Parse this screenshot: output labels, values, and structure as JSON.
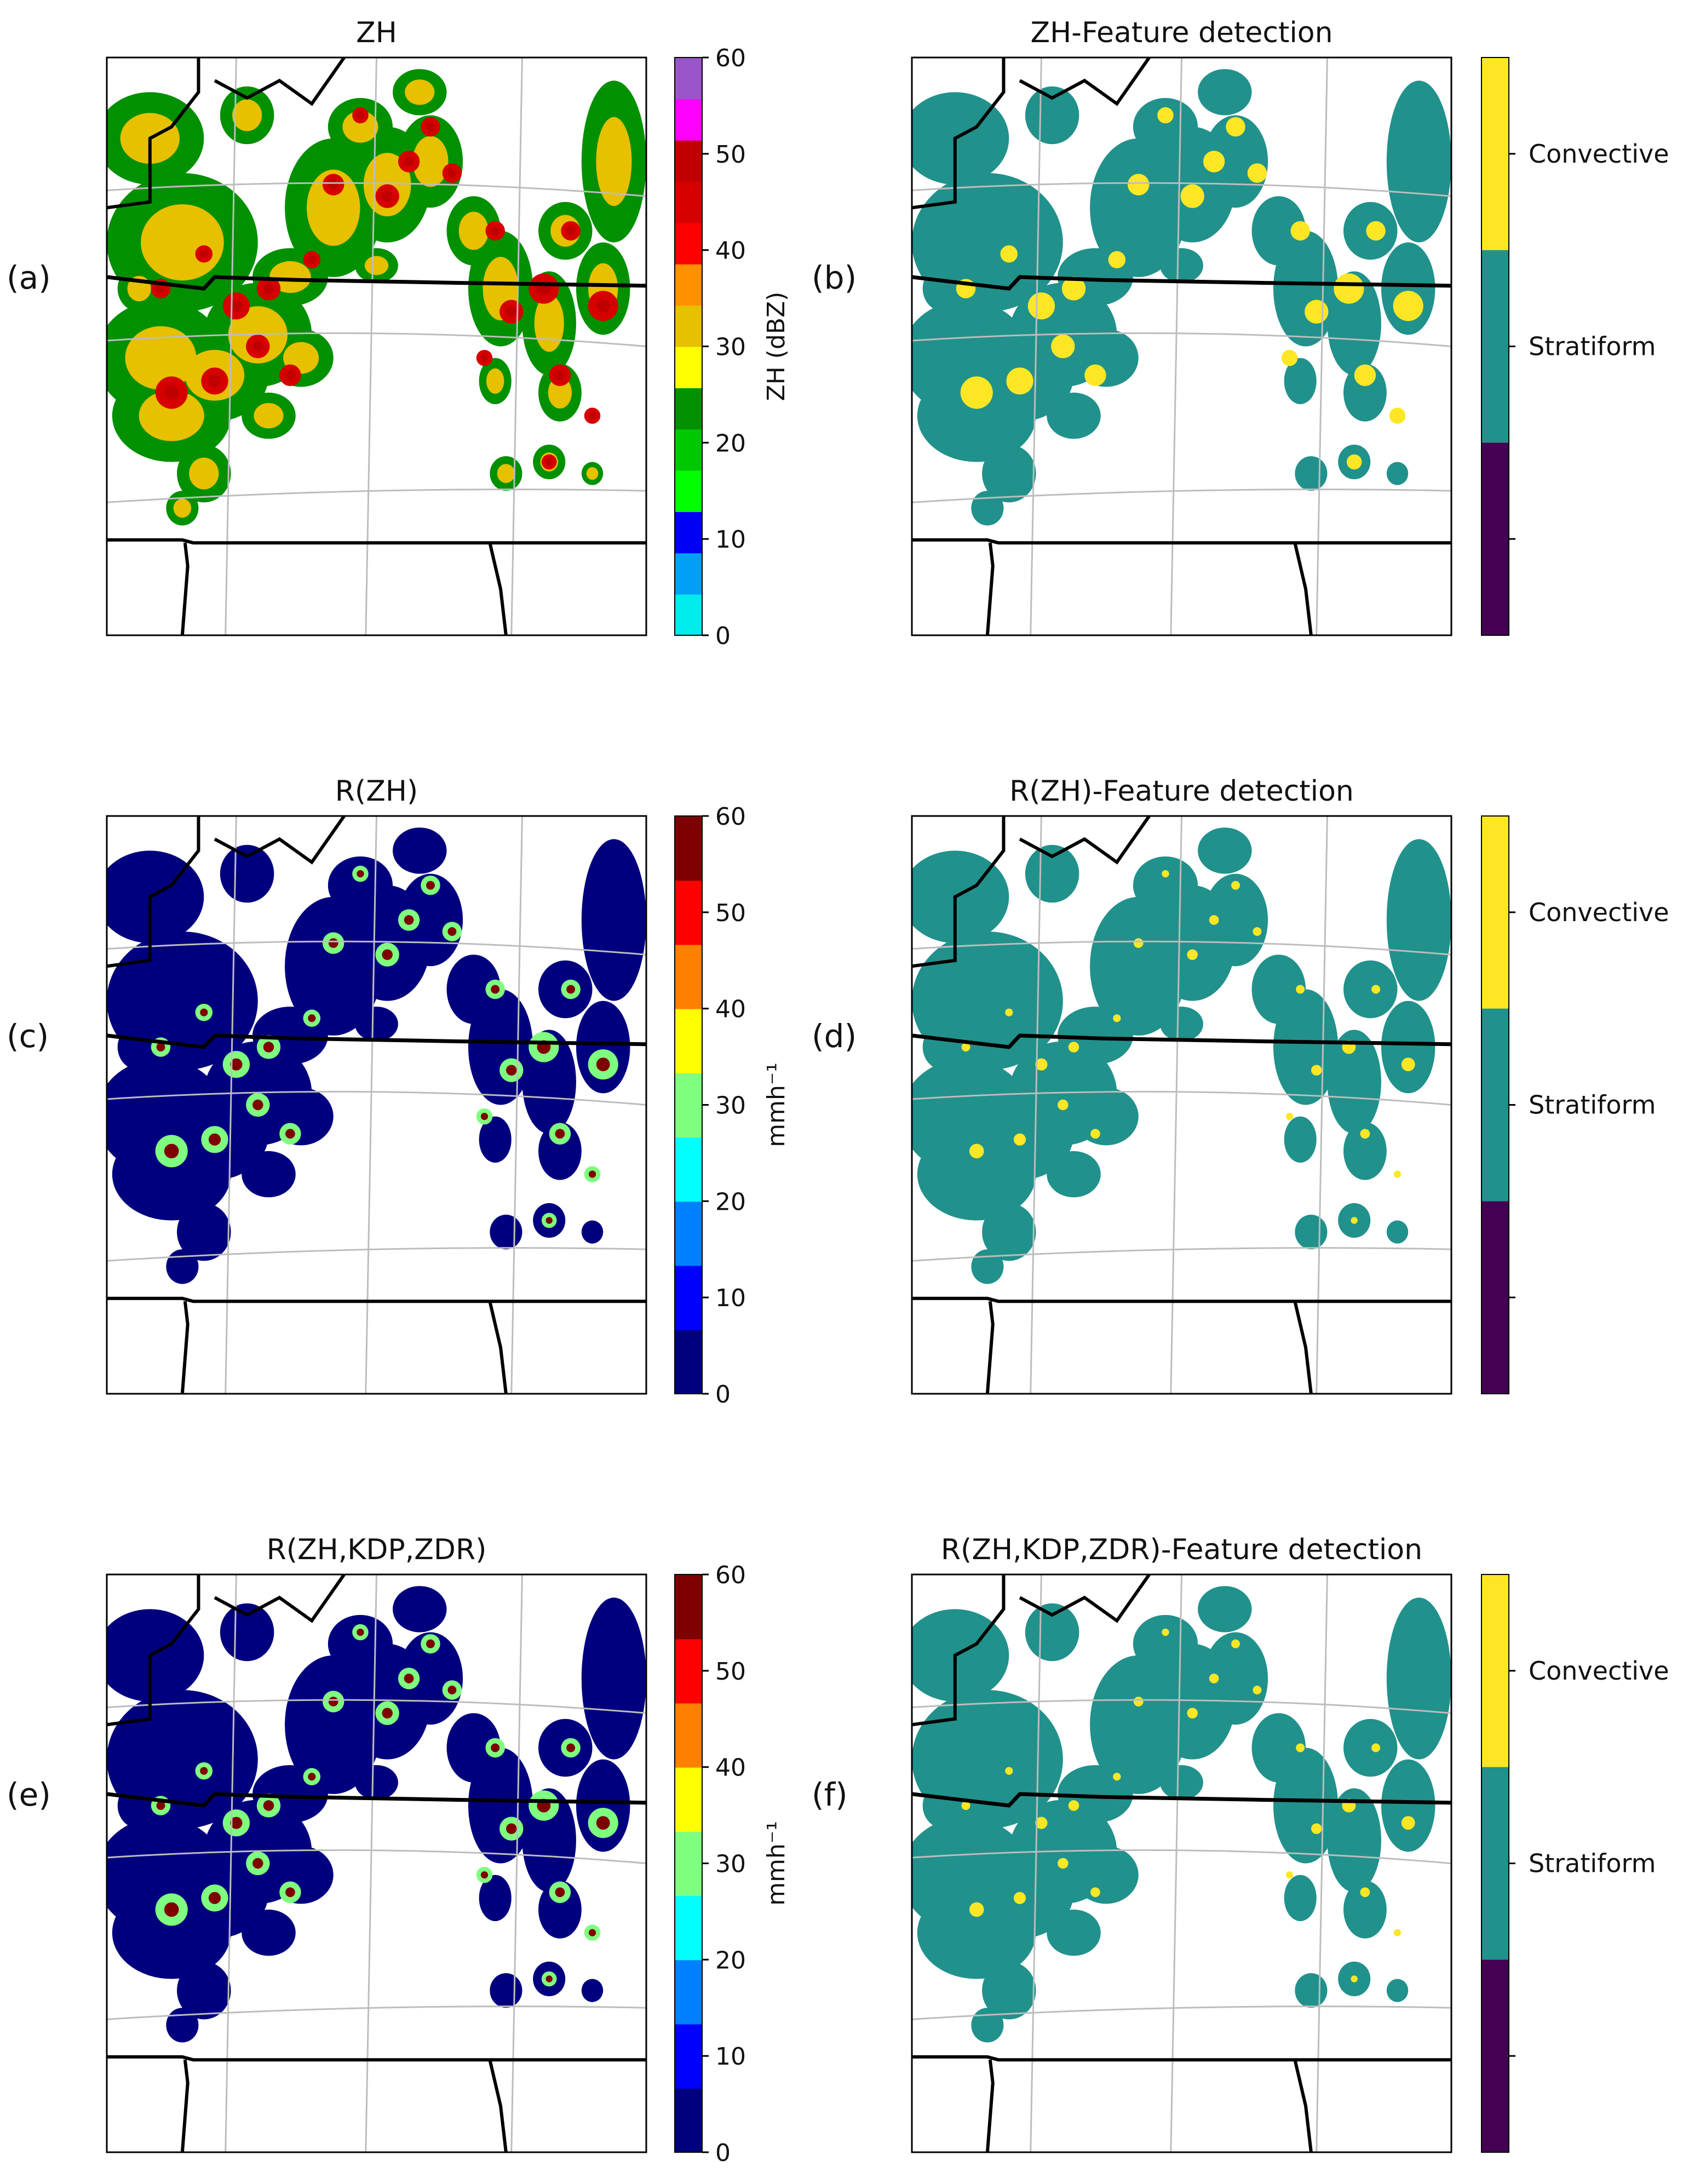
{
  "panels": [
    {
      "id": "a",
      "label": "(a)",
      "title": "ZH",
      "kind": "field",
      "field": "zh",
      "row": 0,
      "col": 0
    },
    {
      "id": "b",
      "label": "(b)",
      "title": "ZH-Feature detection",
      "kind": "class",
      "field": "zh",
      "row": 0,
      "col": 1
    },
    {
      "id": "c",
      "label": "(c)",
      "title": "R(ZH)",
      "kind": "field",
      "field": "rzh",
      "row": 1,
      "col": 0
    },
    {
      "id": "d",
      "label": "(d)",
      "title": "R(ZH)-Feature detection",
      "kind": "class",
      "field": "rzh",
      "row": 1,
      "col": 1
    },
    {
      "id": "e",
      "label": "(e)",
      "title": "R(ZH,KDP,ZDR)",
      "kind": "field",
      "field": "rkz",
      "row": 2,
      "col": 0
    },
    {
      "id": "f",
      "label": "(f)",
      "title": "R(ZH,KDP,ZDR)-Feature detection",
      "kind": "class",
      "field": "rkz",
      "row": 2,
      "col": 1
    }
  ],
  "colorbars": [
    {
      "id": "zh",
      "row": 0,
      "label": "ZH (dBZ)",
      "min": 0,
      "max": 60,
      "ticks": [
        "0",
        "10",
        "20",
        "30",
        "40",
        "50",
        "60"
      ],
      "colormap": [
        "#00ecec",
        "#01a0f6",
        "#0000f6",
        "#00ff00",
        "#00c800",
        "#009000",
        "#ffff00",
        "#e7c000",
        "#ff9000",
        "#ff0000",
        "#d60000",
        "#c00000",
        "#ff00ff",
        "#9955c9"
      ]
    },
    {
      "id": "rzh",
      "row": 1,
      "label": "mmh⁻¹",
      "min": 0,
      "max": 60,
      "ticks": [
        "0",
        "10",
        "20",
        "30",
        "40",
        "50",
        "60"
      ],
      "colormap": [
        "#00007f",
        "#0000ff",
        "#007fff",
        "#00ffff",
        "#7fff7f",
        "#ffff00",
        "#ff7f00",
        "#ff0000",
        "#7f0000"
      ]
    },
    {
      "id": "rkz",
      "row": 2,
      "label": "mmh⁻¹",
      "min": 0,
      "max": 60,
      "ticks": [
        "0",
        "10",
        "20",
        "30",
        "40",
        "50",
        "60"
      ],
      "colormap": [
        "#00007f",
        "#0000ff",
        "#007fff",
        "#00ffff",
        "#7fff7f",
        "#ffff00",
        "#ff7f00",
        "#ff0000",
        "#7f0000"
      ]
    }
  ],
  "class_legend": {
    "classes": [
      {
        "name": "Convective",
        "color": "#fde725"
      },
      {
        "name": "Stratiform",
        "color": "#21918c"
      },
      {
        "name": "",
        "color": "#440154"
      }
    ]
  },
  "chart_data": {
    "type": "heatmap",
    "description_fields": [
      "ZH (dBZ)",
      "R(ZH) mm h-1",
      "R(ZH,KDP,ZDR) mm h-1"
    ],
    "value_range": [
      0,
      60
    ],
    "class_labels": [
      "Convective",
      "Stratiform"
    ]
  },
  "colors": {
    "stratiform": "#21918c",
    "convective": "#fde725",
    "grid": "#bdbdbd",
    "border": "#000000"
  }
}
